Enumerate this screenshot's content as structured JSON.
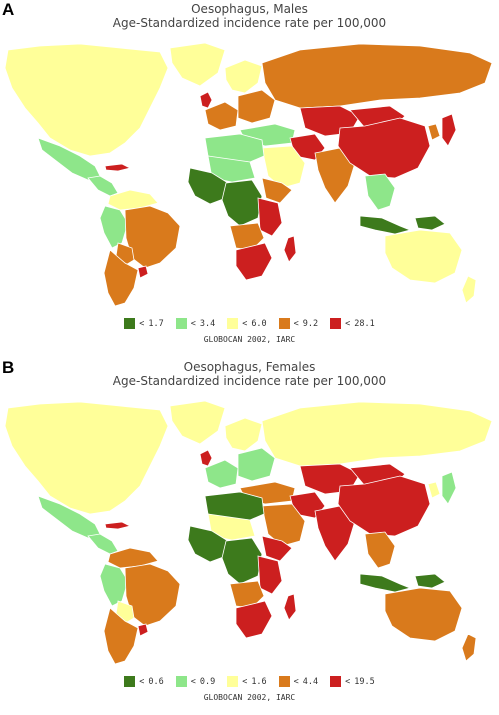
{
  "palette": {
    "lowest": "#3d7a1c",
    "low": "#8ee68a",
    "mid": "#ffff99",
    "high": "#d97a1c",
    "highest": "#cc1f1f",
    "water": "#ffffff"
  },
  "panels": [
    {
      "letter": "A",
      "title": "Oesophagus, Males",
      "subtitle": "Age-Standardized incidence rate per 100,000",
      "legend": [
        {
          "symbol": "<",
          "value": "1.7",
          "color": "#3d7a1c"
        },
        {
          "symbol": "<",
          "value": "3.4",
          "color": "#8ee68a"
        },
        {
          "symbol": "<",
          "value": "6.0",
          "color": "#ffff99"
        },
        {
          "symbol": "<",
          "value": "9.2",
          "color": "#d97a1c"
        },
        {
          "symbol": "<",
          "value": "28.1",
          "color": "#cc1f1f"
        }
      ],
      "source": "GLOBOCAN 2002, IARC",
      "regions": {
        "north_america": "#ffff99",
        "greenland": "#ffff99",
        "mexico": "#8ee68a",
        "central_america": "#8ee68a",
        "caribbean": "#cc1f1f",
        "colombia_venezuela": "#ffff99",
        "peru_ecuador": "#8ee68a",
        "brazil": "#d97a1c",
        "bolivia": "#d97a1c",
        "argentina_chile": "#d97a1c",
        "uruguay": "#cc1f1f",
        "uk": "#cc1f1f",
        "scandinavia": "#ffff99",
        "western_europe": "#d97a1c",
        "eastern_europe": "#d97a1c",
        "russia": "#d97a1c",
        "central_asia": "#cc1f1f",
        "turkey_mideast": "#8ee68a",
        "arabia": "#ffff99",
        "iran": "#cc1f1f",
        "south_asia": "#d97a1c",
        "china": "#cc1f1f",
        "mongolia": "#cc1f1f",
        "japan": "#cc1f1f",
        "korea": "#d97a1c",
        "southeast_asia": "#8ee68a",
        "indonesia": "#3d7a1c",
        "new_guinea": "#3d7a1c",
        "australia": "#ffff99",
        "new_zealand": "#ffff99",
        "north_africa": "#8ee68a",
        "west_africa": "#3d7a1c",
        "central_africa": "#3d7a1c",
        "sahel": "#8ee68a",
        "east_africa": "#cc1f1f",
        "horn_africa": "#d97a1c",
        "southern_africa": "#cc1f1f",
        "angola_zambia": "#d97a1c",
        "madagascar": "#cc1f1f"
      }
    },
    {
      "letter": "B",
      "title": "Oesophagus, Females",
      "subtitle": "Age-Standardized incidence rate per 100,000",
      "legend": [
        {
          "symbol": "<",
          "value": "0.6",
          "color": "#3d7a1c"
        },
        {
          "symbol": "<",
          "value": "0.9",
          "color": "#8ee68a"
        },
        {
          "symbol": "<",
          "value": "1.6",
          "color": "#ffff99"
        },
        {
          "symbol": "<",
          "value": "4.4",
          "color": "#d97a1c"
        },
        {
          "symbol": "<",
          "value": "19.5",
          "color": "#cc1f1f"
        }
      ],
      "source": "GLOBOCAN 2002, IARC",
      "regions": {
        "north_america": "#ffff99",
        "greenland": "#ffff99",
        "mexico": "#8ee68a",
        "central_america": "#8ee68a",
        "caribbean": "#cc1f1f",
        "colombia_venezuela": "#d97a1c",
        "peru_ecuador": "#8ee68a",
        "brazil": "#d97a1c",
        "bolivia": "#ffff99",
        "argentina_chile": "#d97a1c",
        "uruguay": "#cc1f1f",
        "uk": "#cc1f1f",
        "scandinavia": "#ffff99",
        "western_europe": "#8ee68a",
        "eastern_europe": "#8ee68a",
        "russia": "#ffff99",
        "central_asia": "#cc1f1f",
        "turkey_mideast": "#d97a1c",
        "arabia": "#d97a1c",
        "iran": "#cc1f1f",
        "south_asia": "#cc1f1f",
        "china": "#cc1f1f",
        "mongolia": "#cc1f1f",
        "japan": "#8ee68a",
        "korea": "#ffff99",
        "southeast_asia": "#d97a1c",
        "indonesia": "#3d7a1c",
        "new_guinea": "#3d7a1c",
        "australia": "#d97a1c",
        "new_zealand": "#d97a1c",
        "north_africa": "#3d7a1c",
        "west_africa": "#3d7a1c",
        "central_africa": "#3d7a1c",
        "sahel": "#ffff99",
        "east_africa": "#cc1f1f",
        "horn_africa": "#cc1f1f",
        "southern_africa": "#cc1f1f",
        "angola_zambia": "#d97a1c",
        "madagascar": "#cc1f1f"
      }
    }
  ]
}
